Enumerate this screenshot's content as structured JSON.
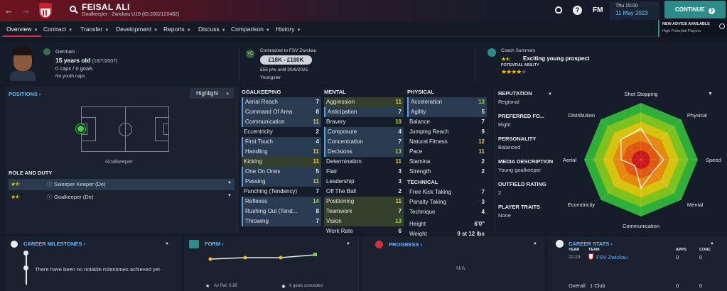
{
  "player": {
    "name": "FEISAL ALI",
    "subtitle": "Goalkeeper - Zwickau U19 (ID:2002120482)",
    "nationality": "German",
    "age": "15 years old",
    "dob": "(16/7/2007)",
    "caps": "0 caps / 0 goals",
    "youth_caps": "No youth caps"
  },
  "topbar": {
    "fm": "FM",
    "time": "Thu 15:00",
    "date": "11 May 2023",
    "continue": "CONTINUE",
    "advice_title": "NEW ADVICE AVAILABLE",
    "advice_text": "High Potential Players",
    "colors": {
      "continue_bg": "#2d8c8a",
      "accent": "#d23044"
    }
  },
  "tabs": [
    {
      "label": "Overview"
    },
    {
      "label": "Contract"
    },
    {
      "label": "Transfer"
    },
    {
      "label": "Development"
    },
    {
      "label": "Reports"
    },
    {
      "label": "Discuss"
    },
    {
      "label": "Comparison"
    },
    {
      "label": "History"
    }
  ],
  "contract": {
    "title": "Contracted to FSV Zwickau",
    "value": "£18K - £180K",
    "wage": "£55 p/w until 30/6/2025",
    "status": "Youngster"
  },
  "coach": {
    "title": "Coach Summary",
    "summary": "Exciting young prospect",
    "potential_label": "POTENTIAL ABILITY",
    "ability_stars": 1.5,
    "potential_stars": 4
  },
  "positions": {
    "title": "POSITIONS",
    "highlight": "Highlight",
    "pitch_label": "Goalkeeper"
  },
  "roles": {
    "title": "ROLE AND DUTY",
    "items": [
      {
        "label": "Sweeper Keeper (De)",
        "stars": 1.5
      },
      {
        "label": "Goalkeeper (De)",
        "stars": 1.5
      }
    ]
  },
  "attributes": {
    "goalkeeping": {
      "title": "GOALKEEPING",
      "rows": [
        [
          "Aerial Reach",
          "7"
        ],
        [
          "Command Of Area",
          "8"
        ],
        [
          "Communication",
          "11"
        ],
        [
          "Eccentricity",
          "2"
        ],
        [
          "First Touch",
          "4"
        ],
        [
          "Handling",
          "11"
        ],
        [
          "Kicking",
          "11"
        ],
        [
          "One On Ones",
          "5"
        ],
        [
          "Passing",
          "11"
        ],
        [
          "Punching (Tendency)",
          "7"
        ],
        [
          "Reflexes",
          "14"
        ],
        [
          "Rushing Out (Tend...",
          "8"
        ],
        [
          "Throwing",
          "7"
        ]
      ]
    },
    "mental": {
      "title": "MENTAL",
      "rows": [
        [
          "Aggression",
          "11"
        ],
        [
          "Anticipation",
          "7"
        ],
        [
          "Bravery",
          "10"
        ],
        [
          "Composure",
          "4"
        ],
        [
          "Concentration",
          "7"
        ],
        [
          "Decisions",
          "13"
        ],
        [
          "Determination",
          "11"
        ],
        [
          "Flair",
          "3"
        ],
        [
          "Leadership",
          "3"
        ],
        [
          "Off The Ball",
          "2"
        ],
        [
          "Positioning",
          "11"
        ],
        [
          "Teamwork",
          "7"
        ],
        [
          "Vision",
          "13"
        ],
        [
          "Work Rate",
          "6"
        ]
      ]
    },
    "physical": {
      "title": "PHYSICAL",
      "rows": [
        [
          "Acceleration",
          "13"
        ],
        [
          "Agility",
          "5"
        ],
        [
          "Balance",
          "7"
        ],
        [
          "Jumping Reach",
          "9"
        ],
        [
          "Natural Fitness",
          "12"
        ],
        [
          "Pace",
          "11"
        ],
        [
          "Stamina",
          "2"
        ],
        [
          "Strength",
          "2"
        ]
      ]
    },
    "technical": {
      "title": "TECHNICAL",
      "rows": [
        [
          "Free Kick Taking",
          "7"
        ],
        [
          "Penalty Taking",
          "3"
        ],
        [
          "Technique",
          "4"
        ]
      ]
    },
    "height_label": "Height",
    "height": "6'0\"",
    "weight_label": "Weight",
    "weight": "9 st 12 lbs"
  },
  "info": [
    {
      "label": "REPUTATION",
      "value": "Regional"
    },
    {
      "label": "PREFERRED FO...",
      "value": "Right"
    },
    {
      "label": "PERSONALITY",
      "value": "Balanced"
    },
    {
      "label": "MEDIA DESCRIPTION",
      "value": "Young goalkeeper"
    },
    {
      "label": "OUTFIELD RATING",
      "value": "2"
    },
    {
      "label": "PLAYER TRAITS",
      "value": "None"
    }
  ],
  "radar": {
    "axes": [
      "Shot Stopping",
      "Physical",
      "Speed",
      "Mental",
      "Communication",
      "Eccentricity",
      "Aerial",
      "Distribution"
    ],
    "values": [
      0.55,
      0.3,
      0.4,
      0.3,
      0.5,
      0.15,
      0.35,
      0.5
    ]
  },
  "bottom": {
    "milestones": {
      "title": "CAREER MILESTONES",
      "text": "There have been no notable milestones achieved yet."
    },
    "form": {
      "title": "FORM",
      "av_rat": "Av Rat: 6.85",
      "conceded": "6 goals conceded"
    },
    "progress": {
      "title": "PROGRESS",
      "text": "N/A"
    },
    "stats": {
      "title": "CAREER STATS",
      "col_year": "YEAR",
      "col_team": "TEAM",
      "col_apps": "APPS",
      "col_conc": "CONC",
      "row_year": "22-23",
      "row_team": "FSV Zwickau",
      "row_apps": "0",
      "row_conc": "0",
      "overall": "Overall",
      "overall_club": "1 Club",
      "overall_apps": "0",
      "overall_conc": "0"
    }
  }
}
